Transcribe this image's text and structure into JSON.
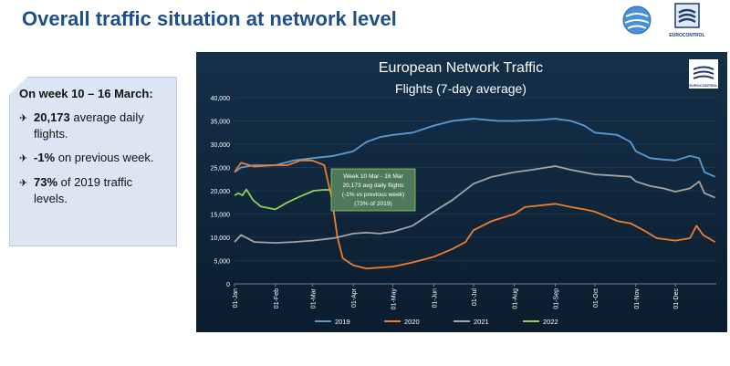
{
  "slide": {
    "title": "Overall traffic situation at network level",
    "logo_text": "EUROCONTROL"
  },
  "info_box": {
    "heading": "On week 10 – 16 March:",
    "items": [
      {
        "bold": "20,173",
        "text": " average daily flights."
      },
      {
        "bold": "-1%",
        "text": " on previous week."
      },
      {
        "bold": "73%",
        "text": " of 2019 traffic levels."
      }
    ]
  },
  "colors": {
    "title": "#1f4e8c",
    "chart_bg": "#0e2438",
    "series_2019": "#5b9bd5",
    "series_2020": "#ed7d31",
    "series_2021": "#a5a5a5",
    "series_2022": "#92d050"
  },
  "chart_data": {
    "type": "line",
    "title": "European Network Traffic",
    "subtitle": "Flights (7-day average)",
    "logo_text": "EUROCONTROL",
    "ylim": [
      0,
      40000
    ],
    "y_ticks": [
      "0",
      "5,000",
      "10,000",
      "15,000",
      "20,000",
      "25,000",
      "30,000",
      "35,000",
      "40,000"
    ],
    "x_ticks": [
      "01-Jan",
      "01-Feb",
      "01-Mar",
      "01-Apr",
      "01-May",
      "01-Jun",
      "01-Jul",
      "01-Aug",
      "01-Sep",
      "01-Oct",
      "01-Nov",
      "01-Dec"
    ],
    "x_tick_days": [
      0,
      31,
      59,
      90,
      120,
      151,
      181,
      212,
      243,
      273,
      304,
      334
    ],
    "legend_position": "bottom",
    "grid": true,
    "annotation": {
      "lines": [
        "Week 10 Mar - 16 Mar",
        "20,173 avg daily flights",
        "(-1% vs previous week)",
        "(73% of 2019)"
      ]
    },
    "series": [
      {
        "name": "2019",
        "color": "#5b9bd5",
        "points": [
          [
            0,
            24000
          ],
          [
            5,
            25000
          ],
          [
            15,
            25500
          ],
          [
            31,
            25500
          ],
          [
            45,
            26500
          ],
          [
            59,
            27000
          ],
          [
            75,
            27500
          ],
          [
            90,
            28500
          ],
          [
            100,
            30500
          ],
          [
            110,
            31500
          ],
          [
            120,
            32000
          ],
          [
            135,
            32500
          ],
          [
            151,
            34000
          ],
          [
            165,
            35000
          ],
          [
            181,
            35500
          ],
          [
            200,
            35000
          ],
          [
            212,
            35000
          ],
          [
            230,
            35200
          ],
          [
            243,
            35500
          ],
          [
            255,
            35000
          ],
          [
            265,
            34000
          ],
          [
            273,
            32500
          ],
          [
            290,
            32000
          ],
          [
            300,
            30500
          ],
          [
            304,
            28500
          ],
          [
            315,
            27000
          ],
          [
            325,
            26700
          ],
          [
            334,
            26500
          ],
          [
            345,
            27500
          ],
          [
            352,
            27000
          ],
          [
            356,
            24000
          ],
          [
            364,
            23000
          ]
        ]
      },
      {
        "name": "2020",
        "color": "#ed7d31",
        "points": [
          [
            0,
            24000
          ],
          [
            5,
            26000
          ],
          [
            15,
            25200
          ],
          [
            31,
            25500
          ],
          [
            40,
            25500
          ],
          [
            50,
            26500
          ],
          [
            59,
            26500
          ],
          [
            68,
            25500
          ],
          [
            74,
            18000
          ],
          [
            78,
            10000
          ],
          [
            82,
            5500
          ],
          [
            90,
            4000
          ],
          [
            100,
            3300
          ],
          [
            120,
            3700
          ],
          [
            135,
            4600
          ],
          [
            151,
            5800
          ],
          [
            165,
            7500
          ],
          [
            175,
            9000
          ],
          [
            181,
            11500
          ],
          [
            195,
            13500
          ],
          [
            212,
            15000
          ],
          [
            220,
            16500
          ],
          [
            243,
            17200
          ],
          [
            255,
            16500
          ],
          [
            265,
            16000
          ],
          [
            273,
            15500
          ],
          [
            290,
            13500
          ],
          [
            300,
            13000
          ],
          [
            310,
            11500
          ],
          [
            320,
            9800
          ],
          [
            334,
            9300
          ],
          [
            345,
            9800
          ],
          [
            350,
            12500
          ],
          [
            355,
            10500
          ],
          [
            364,
            9000
          ]
        ]
      },
      {
        "name": "2021",
        "color": "#a5a5a5",
        "points": [
          [
            0,
            9000
          ],
          [
            5,
            10500
          ],
          [
            15,
            9000
          ],
          [
            31,
            8800
          ],
          [
            45,
            9000
          ],
          [
            59,
            9300
          ],
          [
            75,
            9800
          ],
          [
            90,
            10800
          ],
          [
            100,
            11000
          ],
          [
            110,
            10800
          ],
          [
            120,
            11200
          ],
          [
            135,
            12500
          ],
          [
            151,
            15500
          ],
          [
            165,
            18000
          ],
          [
            181,
            21500
          ],
          [
            195,
            23000
          ],
          [
            212,
            24000
          ],
          [
            225,
            24500
          ],
          [
            243,
            25300
          ],
          [
            255,
            24500
          ],
          [
            273,
            23500
          ],
          [
            285,
            23300
          ],
          [
            300,
            23000
          ],
          [
            304,
            22000
          ],
          [
            315,
            21000
          ],
          [
            325,
            20500
          ],
          [
            334,
            19800
          ],
          [
            345,
            20500
          ],
          [
            352,
            22000
          ],
          [
            356,
            19500
          ],
          [
            364,
            18500
          ]
        ]
      },
      {
        "name": "2022",
        "color": "#92d050",
        "points": [
          [
            0,
            19000
          ],
          [
            3,
            19500
          ],
          [
            6,
            19000
          ],
          [
            9,
            20300
          ],
          [
            14,
            18000
          ],
          [
            20,
            16600
          ],
          [
            31,
            16000
          ],
          [
            40,
            17500
          ],
          [
            50,
            18800
          ],
          [
            60,
            20000
          ],
          [
            67,
            20200
          ],
          [
            72,
            20200
          ]
        ]
      }
    ]
  }
}
